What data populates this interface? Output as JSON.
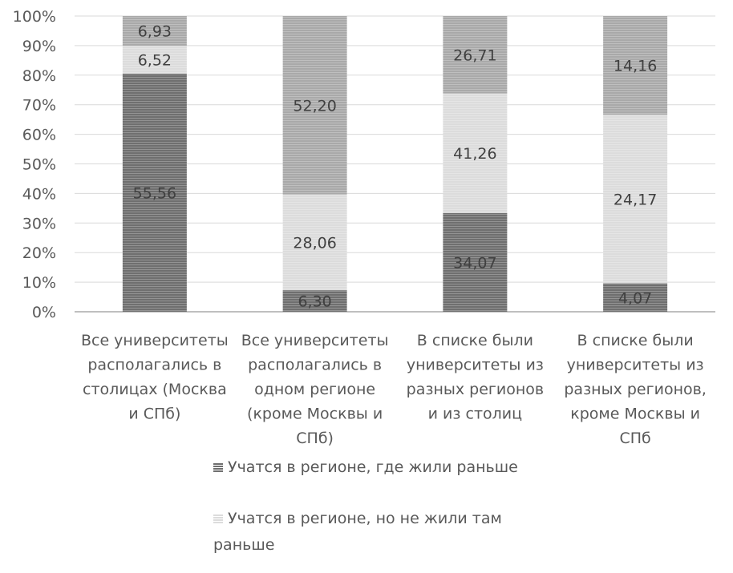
{
  "chart_data": {
    "type": "bar",
    "stacked": "percent",
    "categories": [
      [
        "Все университеты",
        "располагались в",
        "столицах (Москва",
        "и СПб)"
      ],
      [
        "Все университеты",
        "располагались в",
        "одном регионе",
        "(кроме Москвы и",
        "СПб)"
      ],
      [
        "В списке были",
        "университеты из",
        "разных регионов",
        "и из столиц"
      ],
      [
        "В списке были",
        "университеты из",
        "разных регионов,",
        "кроме Москвы и",
        "СПб"
      ]
    ],
    "series": [
      {
        "name": "Учатся в регионе, где жили раньше",
        "color": "#6f6f6f",
        "values": [
          55.56,
          6.3,
          34.07,
          4.07
        ],
        "labels": [
          "55,56",
          "6,30",
          "34,07",
          "4,07"
        ]
      },
      {
        "name": "Учатся в регионе, но не жили там раньше",
        "color": "#dcdcdc",
        "values": [
          6.52,
          28.06,
          41.26,
          24.17
        ],
        "labels": [
          "6,52",
          "28,06",
          "41,26",
          "24,17"
        ]
      },
      {
        "name": "",
        "color": "#a9a9a9",
        "values": [
          6.93,
          52.2,
          26.71,
          14.16
        ],
        "labels": [
          "6,93",
          "52,20",
          "26,71",
          "14,16"
        ]
      }
    ],
    "yticks": [
      "0%",
      "10%",
      "20%",
      "30%",
      "40%",
      "50%",
      "60%",
      "70%",
      "80%",
      "90%",
      "100%"
    ],
    "ylim": [
      0,
      100
    ],
    "grid": true,
    "legend_position": "bottom"
  }
}
